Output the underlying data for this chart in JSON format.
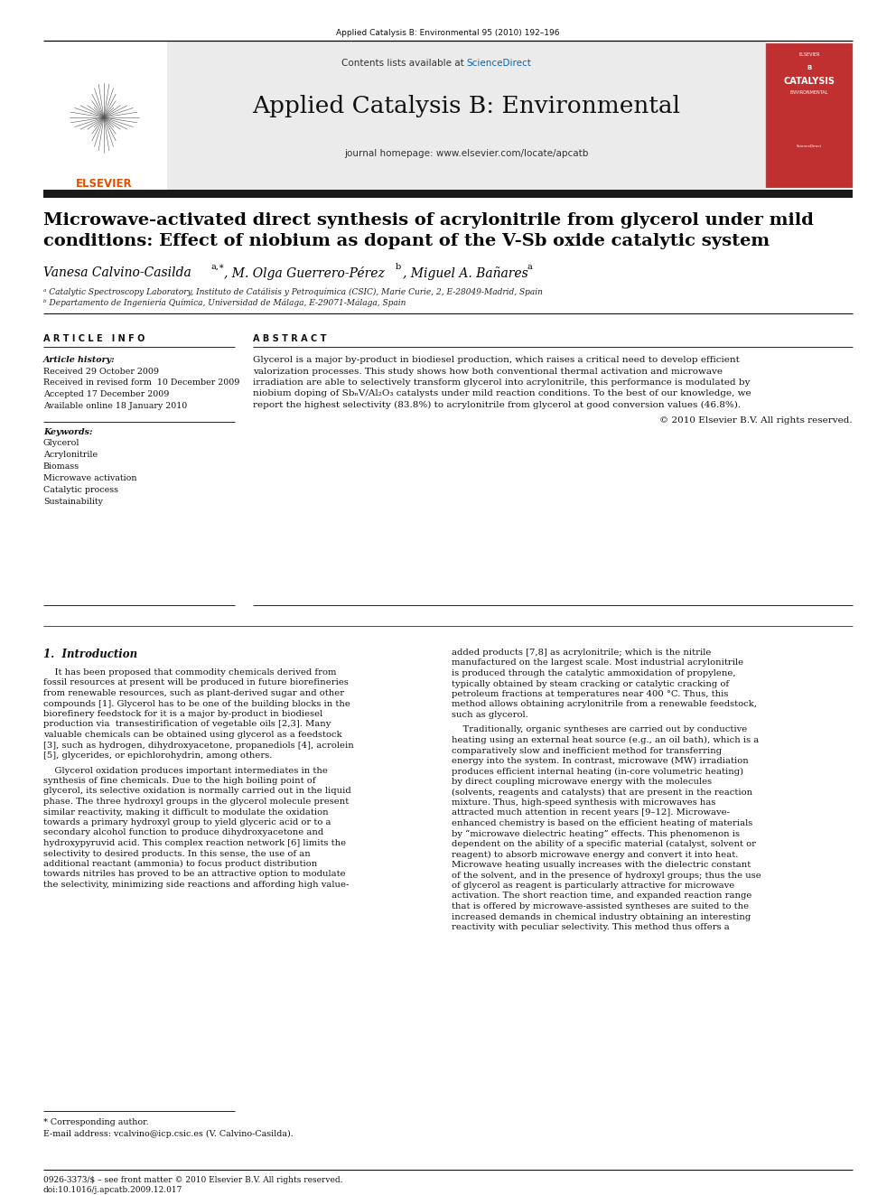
{
  "page_bg": "#ffffff",
  "journal_ref": "Applied Catalysis B: Environmental 95 (2010) 192–196",
  "contents_text": "Contents lists available at ",
  "sciencedirect_text": "ScienceDirect",
  "journal_title": "Applied Catalysis B: Environmental",
  "journal_homepage": "journal homepage: www.elsevier.com/locate/apcatb",
  "paper_title_line1": "Microwave-activated direct synthesis of acrylonitrile from glycerol under mild",
  "paper_title_line2": "conditions: Effect of niobium as dopant of the V-Sb oxide catalytic system",
  "affil_a": "ᵃ Catalytic Spectroscopy Laboratory, Instituto de Catálisis y Petroquímica (CSIC), Marie Curie, 2, E-28049-Madrid, Spain",
  "affil_b": "ᵇ Departamento de Ingeniería Química, Universidad de Málaga, E-29071-Málaga, Spain",
  "article_info_header": "A R T I C L E   I N F O",
  "abstract_header": "A B S T R A C T",
  "article_history_label": "Article history:",
  "received": "Received 29 October 2009",
  "received_revised": "Received in revised form  10 December 2009",
  "accepted": "Accepted 17 December 2009",
  "available": "Available online 18 January 2010",
  "keywords_label": "Keywords:",
  "keywords": [
    "Glycerol",
    "Acrylonitrile",
    "Biomass",
    "Microwave activation",
    "Catalytic process",
    "Sustainability"
  ],
  "abstract_lines": [
    "Glycerol is a major by-product in biodiesel production, which raises a critical need to develop efficient",
    "valorization processes. This study shows how both conventional thermal activation and microwave",
    "irradiation are able to selectively transform glycerol into acrylonitrile, this performance is modulated by",
    "niobium doping of SbₙV/Al₂O₃ catalysts under mild reaction conditions. To the best of our knowledge, we",
    "report the highest selectivity (83.8%) to acrylonitrile from glycerol at good conversion values (46.8%)."
  ],
  "abstract_copyright": "© 2010 Elsevier B.V. All rights reserved.",
  "section1_header": "1.  Introduction",
  "intro_col1_p1_lines": [
    "    It has been proposed that commodity chemicals derived from",
    "fossil resources at present will be produced in future biorefineries",
    "from renewable resources, such as plant-derived sugar and other",
    "compounds [1]. Glycerol has to be one of the building blocks in the",
    "biorefinery feedstock for it is a major by-product in biodiesel",
    "production via  transestirification of vegetable oils [2,3]. Many",
    "valuable chemicals can be obtained using glycerol as a feedstock",
    "[3], such as hydrogen, dihydroxyacetone, propanediols [4], acrolein",
    "[5], glycerides, or epichlorohydrin, among others."
  ],
  "intro_col1_p2_lines": [
    "    Glycerol oxidation produces important intermediates in the",
    "synthesis of fine chemicals. Due to the high boiling point of",
    "glycerol, its selective oxidation is normally carried out in the liquid",
    "phase. The three hydroxyl groups in the glycerol molecule present",
    "similar reactivity, making it difficult to modulate the oxidation",
    "towards a primary hydroxyl group to yield glyceric acid or to a",
    "secondary alcohol function to produce dihydroxyacetone and",
    "hydroxypyruvid acid. This complex reaction network [6] limits the",
    "selectivity to desired products. In this sense, the use of an",
    "additional reactant (ammonia) to focus product distribution",
    "towards nitriles has proved to be an attractive option to modulate",
    "the selectivity, minimizing side reactions and affording high value-"
  ],
  "intro_col2_p1_lines": [
    "added products [7,8] as acrylonitrile; which is the nitrile",
    "manufactured on the largest scale. Most industrial acrylonitrile",
    "is produced through the catalytic ammoxidation of propylene,",
    "typically obtained by steam cracking or catalytic cracking of",
    "petroleum fractions at temperatures near 400 °C. Thus, this",
    "method allows obtaining acrylonitrile from a renewable feedstock,",
    "such as glycerol."
  ],
  "intro_col2_p2_lines": [
    "    Traditionally, organic syntheses are carried out by conductive",
    "heating using an external heat source (e.g., an oil bath), which is a",
    "comparatively slow and inefficient method for transferring",
    "energy into the system. In contrast, microwave (MW) irradiation",
    "produces efficient internal heating (in-core volumetric heating)",
    "by direct coupling microwave energy with the molecules",
    "(solvents, reagents and catalysts) that are present in the reaction",
    "mixture. Thus, high-speed synthesis with microwaves has",
    "attracted much attention in recent years [9–12]. Microwave-",
    "enhanced chemistry is based on the efficient heating of materials",
    "by “microwave dielectric heating” effects. This phenomenon is",
    "dependent on the ability of a specific material (catalyst, solvent or",
    "reagent) to absorb microwave energy and convert it into heat.",
    "Microwave heating usually increases with the dielectric constant",
    "of the solvent, and in the presence of hydroxyl groups; thus the use",
    "of glycerol as reagent is particularly attractive for microwave",
    "activation. The short reaction time, and expanded reaction range",
    "that is offered by microwave-assisted syntheses are suited to the",
    "increased demands in chemical industry obtaining an interesting",
    "reactivity with peculiar selectivity. This method thus offers a"
  ],
  "footnote_star": "* Corresponding author.",
  "footnote_email": "E-mail address: vcalvino@icp.csic.es (V. Calvino-Casilda).",
  "bottom_issn": "0926-3373/$ – see front matter © 2010 Elsevier B.V. All rights reserved.",
  "bottom_doi": "doi:10.1016/j.apcatb.2009.12.017",
  "header_gray": "#ebebeb",
  "black_bar": "#1a1a1a",
  "cover_red": "#c03030",
  "elsevier_orange": "#e05000",
  "sciencedirect_blue": "#0066bb",
  "text_dark": "#111111",
  "text_mid": "#333333"
}
